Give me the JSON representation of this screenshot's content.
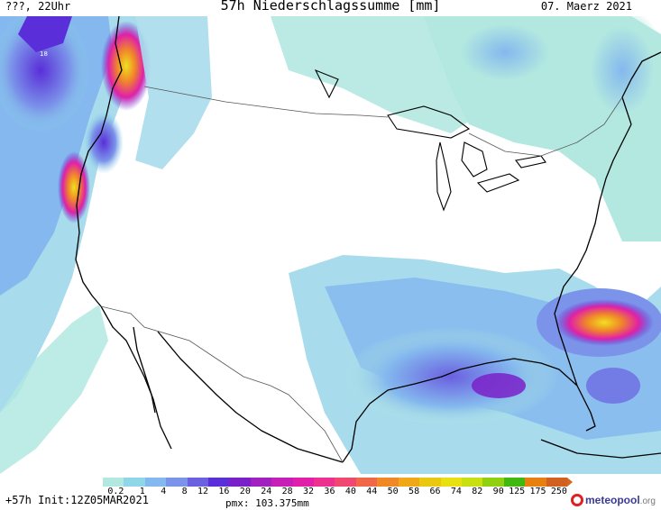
{
  "header": {
    "left": "???, 22Uhr",
    "title": "57h Niederschlagssumme [mm]",
    "date": "07. Maerz 2021"
  },
  "map_label": "18",
  "legend": {
    "ticks": [
      "0.2",
      "1",
      "4",
      "8",
      "12",
      "16",
      "20",
      "24",
      "28",
      "32",
      "36",
      "40",
      "44",
      "50",
      "58",
      "66",
      "74",
      "82",
      "90",
      "125",
      "175",
      "250"
    ],
    "colors": [
      "#b2e8e0",
      "#8ed6e8",
      "#84b8ee",
      "#7b94ea",
      "#6a60e0",
      "#5a2ed8",
      "#7a20c8",
      "#a020c0",
      "#c81eb8",
      "#e020a8",
      "#ee3090",
      "#f04870",
      "#f06848",
      "#f08828",
      "#f0a818",
      "#e8c810",
      "#e8e010",
      "#c8e010",
      "#90d010",
      "#40b810",
      "#e88010",
      "#d26020"
    ]
  },
  "footer": {
    "run": "+57h Init:12Z05MAR2021",
    "pmx": "pmx: 103.375mm",
    "logo": "meteopool",
    "logo_tld": ".org"
  }
}
